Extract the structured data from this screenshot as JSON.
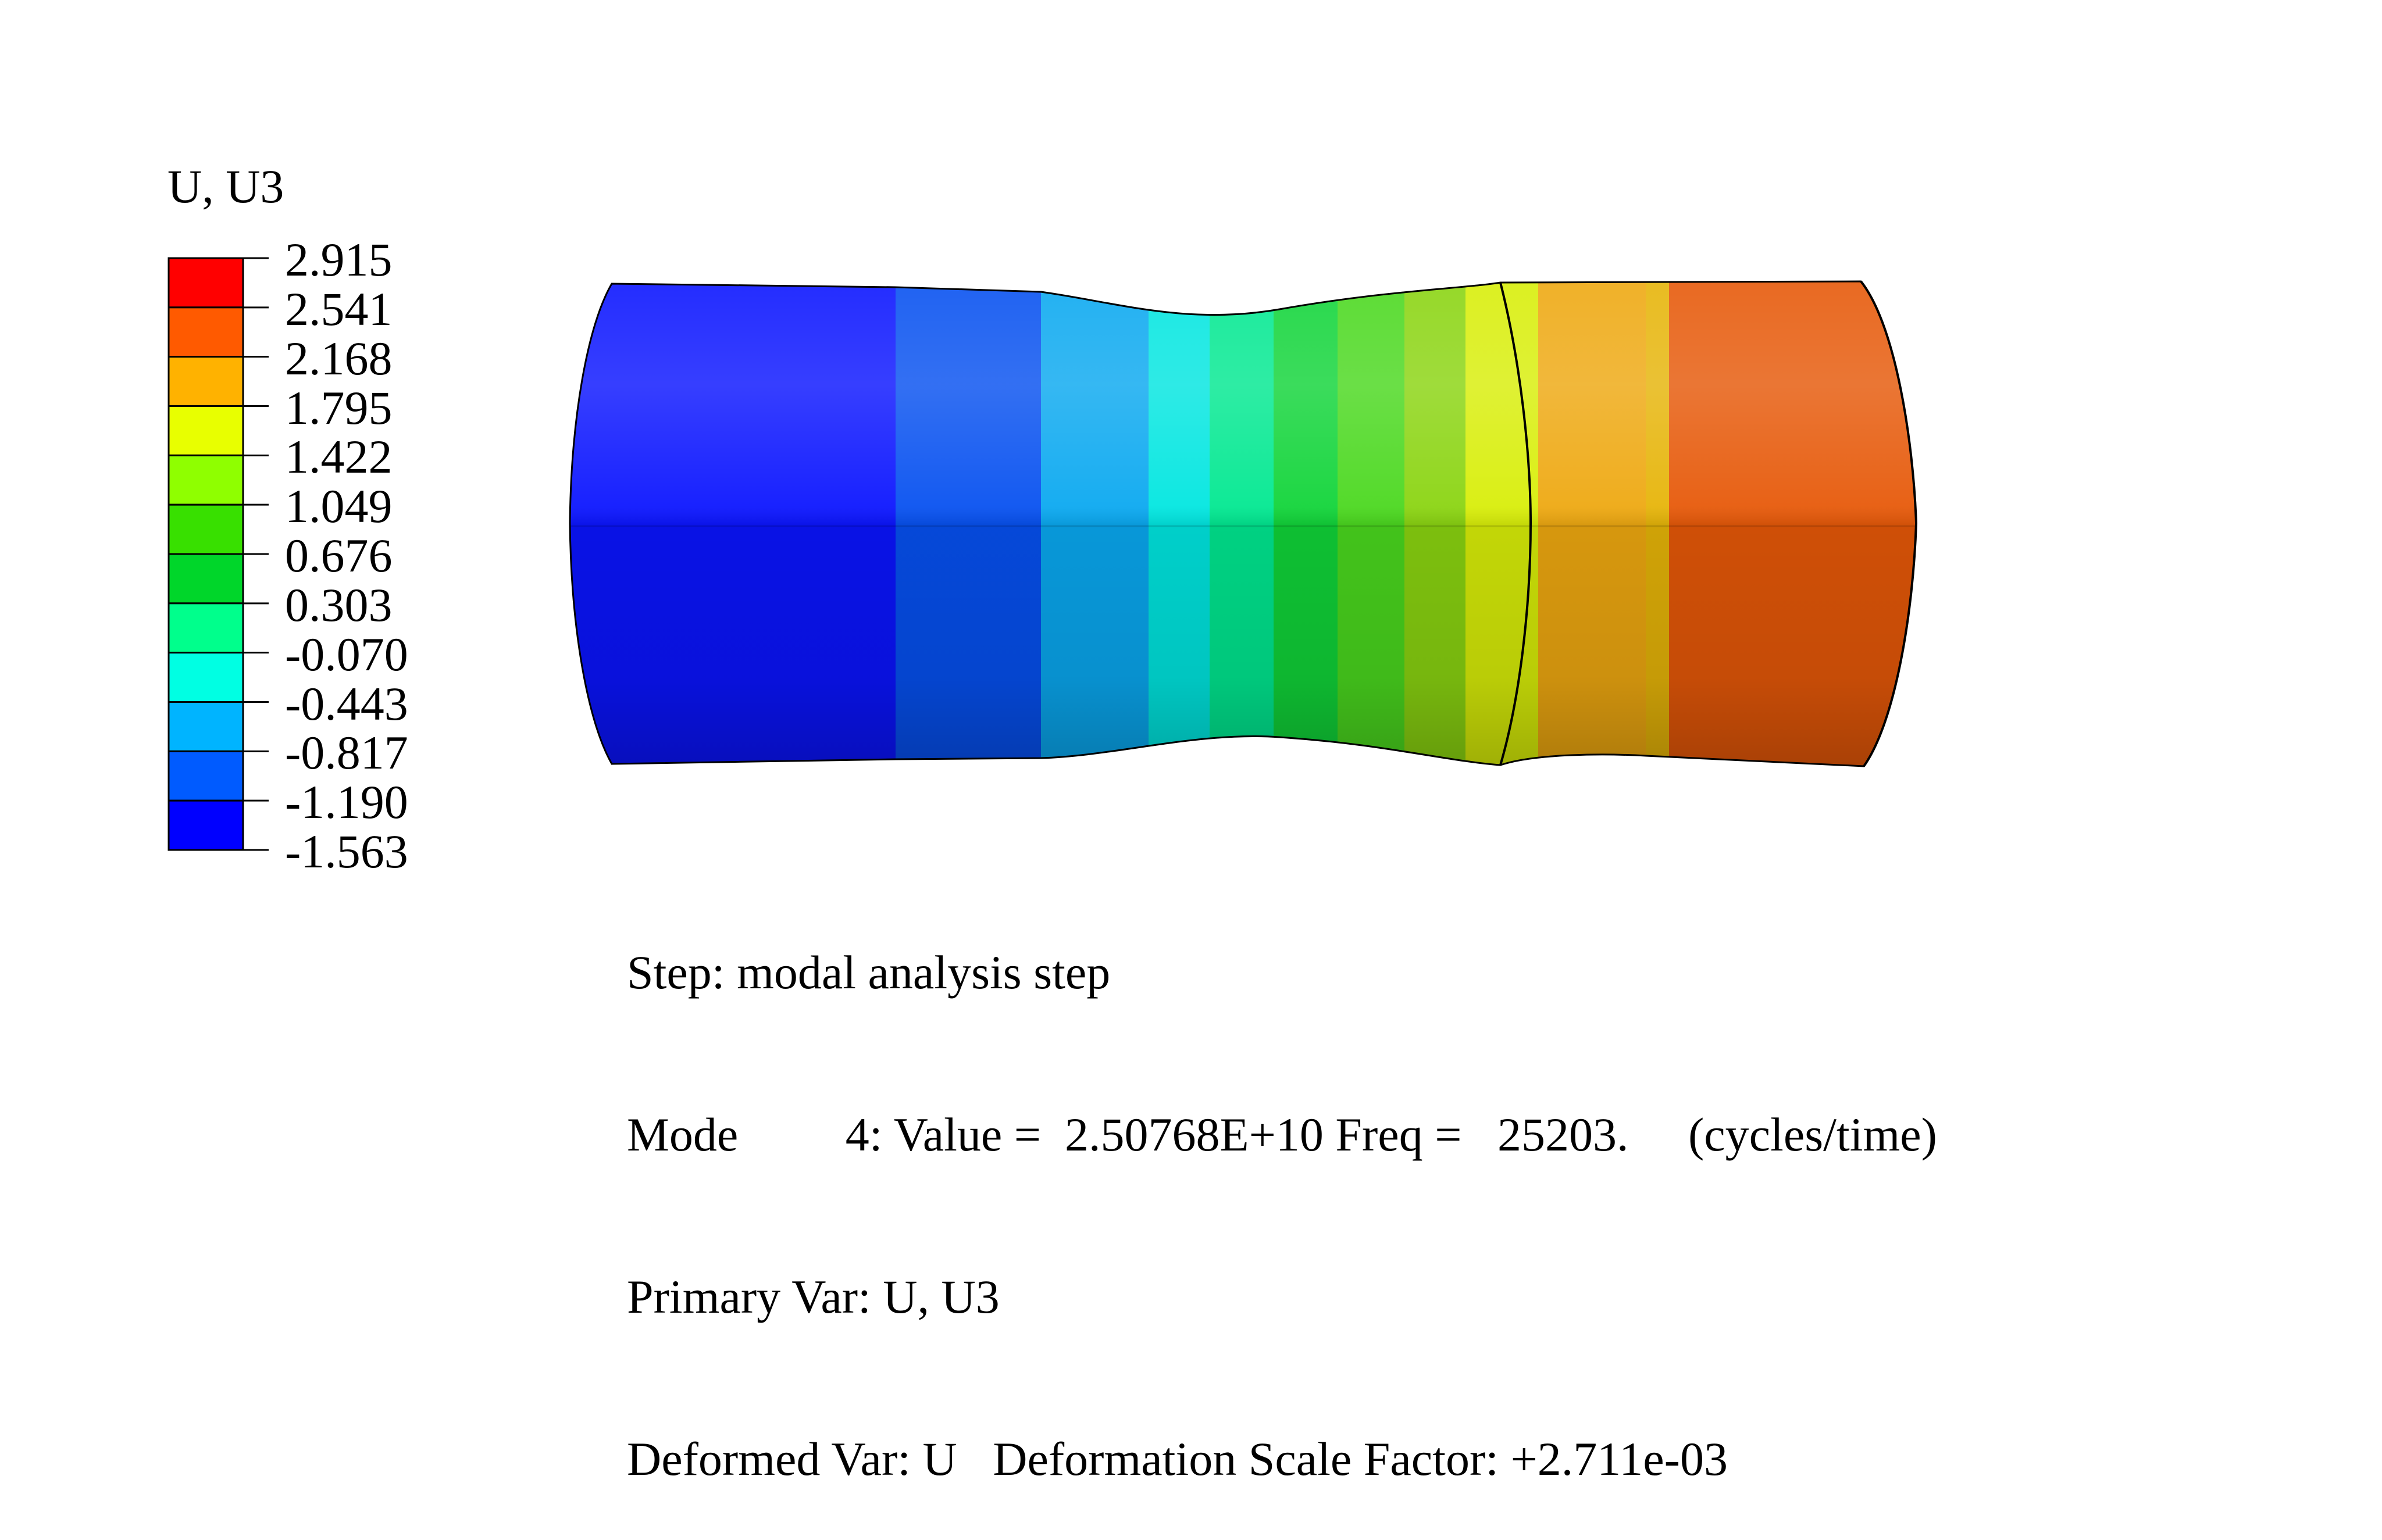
{
  "legend": {
    "title": "U, U3",
    "labels": [
      "2.915",
      "2.541",
      "2.168",
      "1.795",
      "1.422",
      "1.049",
      "0.676",
      "0.303",
      "-0.070",
      "-0.443",
      "-0.817",
      "-1.190",
      "-1.563"
    ],
    "colors": [
      "#ff0000",
      "#ff5a00",
      "#ffb200",
      "#e8ff00",
      "#8fff00",
      "#38e000",
      "#00d62a",
      "#00ff8c",
      "#00ffe3",
      "#00b4ff",
      "#005bff",
      "#0000ff"
    ]
  },
  "model": {
    "bands": [
      {
        "value": -1.5,
        "color": "#0a14ff"
      },
      {
        "value": -1.2,
        "color": "#0650f0"
      },
      {
        "value": -0.8,
        "color": "#09a8f0"
      },
      {
        "value": -0.45,
        "color": "#00e6e0"
      },
      {
        "value": -0.1,
        "color": "#00e890"
      },
      {
        "value": 0.3,
        "color": "#10d438"
      },
      {
        "value": 0.68,
        "color": "#4ad81e"
      },
      {
        "value": 1.05,
        "color": "#8ad410"
      },
      {
        "value": 1.45,
        "color": "#d8ee08"
      },
      {
        "value": 1.9,
        "color": "#eea810"
      },
      {
        "value": 2.2,
        "color": "#e6b408"
      },
      {
        "value": 2.55,
        "color": "#e65808"
      }
    ]
  },
  "info": {
    "step": "Step: modal analysis step",
    "mode": "Mode         4: Value =  2.50768E+10 Freq =   25203.     (cycles/time)",
    "primary_var": "Primary Var: U, U3",
    "deformed_var": "Deformed Var: U   Deformation Scale Factor: +2.711e-03"
  }
}
